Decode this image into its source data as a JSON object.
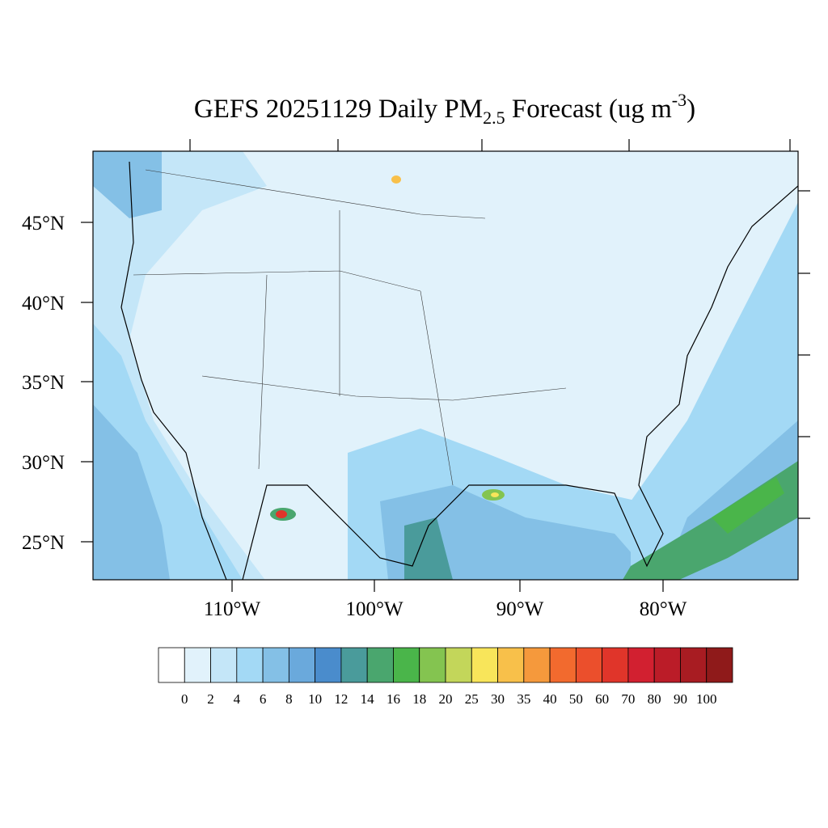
{
  "title": {
    "main": "GEFS 20251129 Daily PM",
    "subscript": "2.5",
    "middle": " Forecast (ug m",
    "superscript": "-3",
    "end": ")"
  },
  "map": {
    "latitude_labels": [
      "45°N",
      "40°N",
      "35°N",
      "30°N",
      "25°N"
    ],
    "longitude_labels": [
      "110°W",
      "100°W",
      "90°W",
      "80°W"
    ]
  },
  "colorbar": {
    "levels": [
      0,
      2,
      4,
      6,
      8,
      10,
      12,
      14,
      16,
      18,
      20,
      25,
      30,
      35,
      40,
      50,
      60,
      70,
      80,
      90,
      100
    ],
    "colors": [
      "#ffffff",
      "#e1f2fb",
      "#c4e6f8",
      "#a3d9f5",
      "#84c0e6",
      "#6aa9dc",
      "#4a8ccc",
      "#4a9b9b",
      "#4aa66e",
      "#4ab54a",
      "#84c450",
      "#c3d65a",
      "#f8e55a",
      "#f8c04a",
      "#f5993c",
      "#f26a2e",
      "#eb4f2c",
      "#e0352a",
      "#d22030",
      "#bb1c28",
      "#a81c22",
      "#8f1a1a"
    ]
  }
}
